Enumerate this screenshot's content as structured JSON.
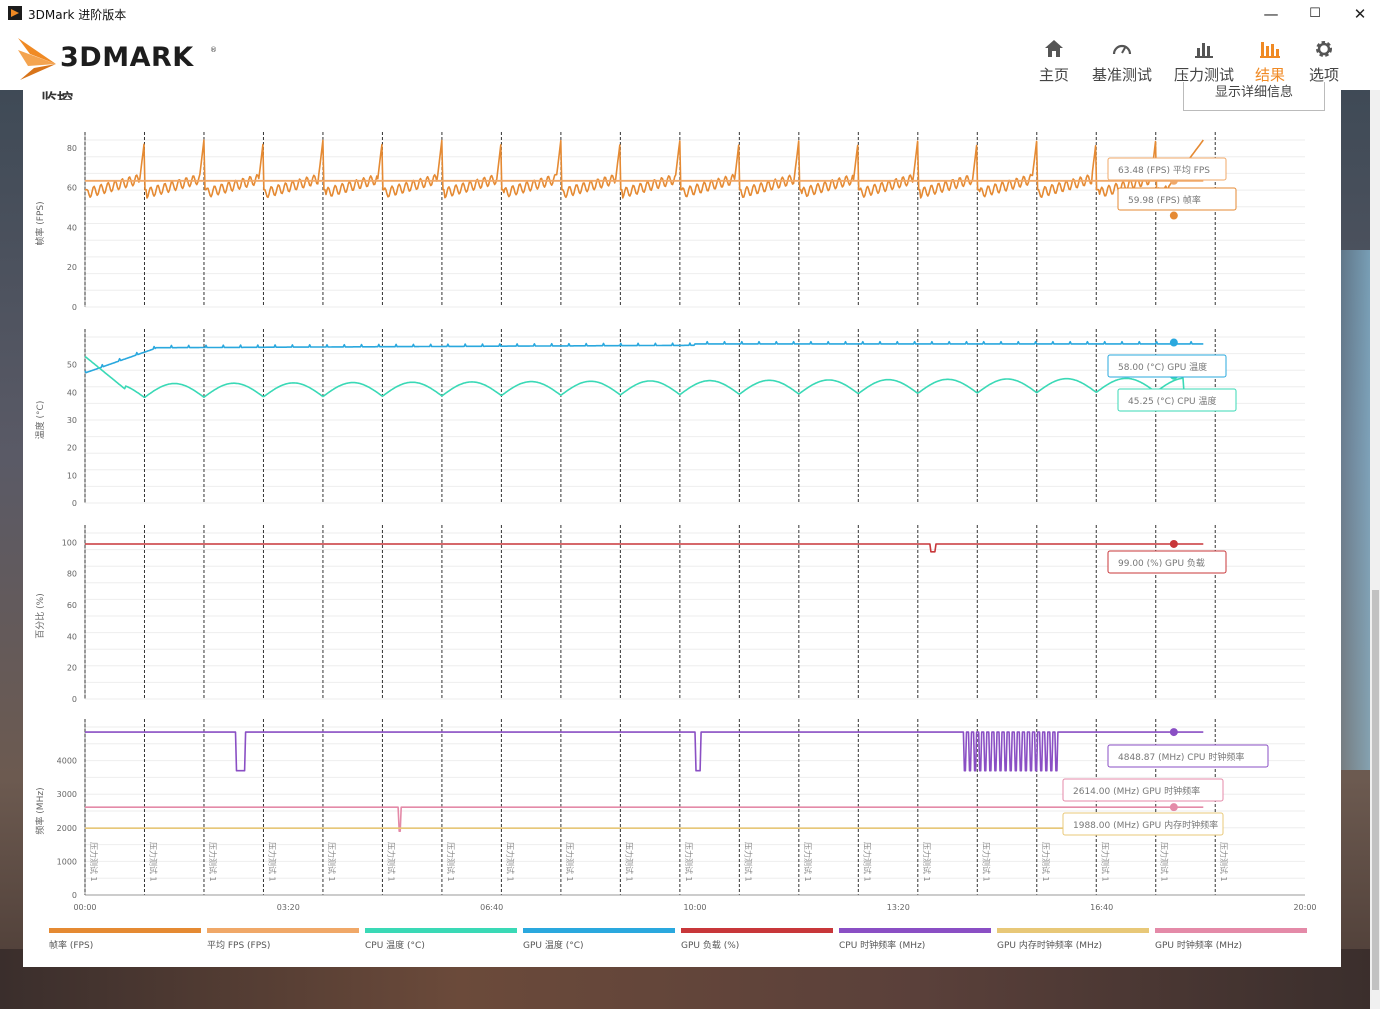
{
  "window": {
    "title": "3DMark 进阶版本",
    "minimize_glyph": "—",
    "maximize_glyph": "☐",
    "close_glyph": "✕"
  },
  "header": {
    "logo_text": "3DMARK",
    "logo_reg": "®",
    "nav": [
      {
        "label": "主页",
        "icon": "home-icon",
        "active": false
      },
      {
        "label": "基准测试",
        "icon": "gauge-icon",
        "active": false
      },
      {
        "label": "压力测试",
        "icon": "stress-bars-icon",
        "active": false
      },
      {
        "label": "结果",
        "icon": "results-bars-icon",
        "active": true
      },
      {
        "label": "选项",
        "icon": "gear-icon",
        "active": false
      }
    ],
    "accent_color": "#f08a24"
  },
  "monitor": {
    "title": "监控",
    "detail_button": "显示详细信息"
  },
  "legend": [
    {
      "label": "帧率 (FPS)",
      "color": "#e58a33"
    },
    {
      "label": "平均 FPS (FPS)",
      "color": "#f0a868"
    },
    {
      "label": "CPU 温度 (°C)",
      "color": "#3ad9b6"
    },
    {
      "label": "GPU 温度 (°C)",
      "color": "#2aa8de"
    },
    {
      "label": "GPU 负载 (%)",
      "color": "#c8373a"
    },
    {
      "label": "CPU 时钟频率 (MHz)",
      "color": "#8a4fc4"
    },
    {
      "label": "GPU 内存时钟频率 (MHz)",
      "color": "#e8c878"
    },
    {
      "label": "GPU 时钟频率 (MHz)",
      "color": "#e48aa8"
    }
  ],
  "chart_data": {
    "type": "line",
    "x_ticks": [
      "00:00",
      "03:20",
      "06:40",
      "10:00",
      "13:20",
      "16:40",
      "20:00"
    ],
    "x_range_seconds": [
      0,
      1200
    ],
    "event_marker_label": "压力测试 1",
    "event_marker_count": 20,
    "panels": [
      {
        "ylabel": "帧率 (FPS)",
        "yticks": [
          0,
          20,
          40,
          60,
          80
        ],
        "ylim": [
          0,
          84
        ],
        "series": [
          {
            "name": "帧率 (FPS)",
            "color": "#e58a33",
            "pattern": "sawtooth",
            "min": 56,
            "max": 84,
            "end": 84
          },
          {
            "name": "平均 FPS (FPS)",
            "color": "#f0a868",
            "constant": 63.48
          }
        ],
        "callouts": [
          {
            "text": "63.48 (FPS) 平均 FPS",
            "color": "#f0a868"
          },
          {
            "text": "59.98 (FPS) 帧率",
            "color": "#e58a33"
          }
        ]
      },
      {
        "ylabel": "温度 (°C)",
        "yticks": [
          0,
          10,
          20,
          30,
          40,
          50
        ],
        "ylim": [
          0,
          60
        ],
        "series": [
          {
            "name": "GPU 温度 (°C)",
            "color": "#2aa8de",
            "start": 47,
            "plateau": 58
          },
          {
            "name": "CPU 温度 (°C)",
            "color": "#3ad9b6",
            "start": 53,
            "min": 37,
            "max": 47,
            "end": 40
          }
        ],
        "callouts": [
          {
            "text": "58.00 (°C) GPU 温度",
            "color": "#2aa8de"
          },
          {
            "text": "45.25 (°C) CPU 温度",
            "color": "#3ad9b6"
          }
        ]
      },
      {
        "ylabel": "百分比 (%)",
        "yticks": [
          0,
          20,
          40,
          60,
          80,
          100
        ],
        "ylim": [
          0,
          106
        ],
        "series": [
          {
            "name": "GPU 负载 (%)",
            "color": "#c8373a",
            "constant": 99,
            "dip_at": 13.9,
            "dip_to": 94
          }
        ],
        "callouts": [
          {
            "text": "99.00 (%) GPU 负载",
            "color": "#c8373a"
          }
        ]
      },
      {
        "ylabel": "频率 (MHz)",
        "yticks": [
          0,
          1000,
          2000,
          3000,
          4000
        ],
        "ylim": [
          0,
          5000
        ],
        "series": [
          {
            "name": "CPU 时钟频率 (MHz)",
            "color": "#8a4fc4",
            "constant": 4848.87,
            "dips_to": 3700
          },
          {
            "name": "GPU 时钟频率 (MHz)",
            "color": "#e48aa8",
            "constant": 2614,
            "dip_to": 1900
          },
          {
            "name": "GPU 内存时钟频率 (MHz)",
            "color": "#e8c878",
            "constant": 1988
          }
        ],
        "callouts": [
          {
            "text": "4848.87 (MHz) CPU 时钟频率",
            "color": "#8a4fc4"
          },
          {
            "text": "2614.00 (MHz) GPU 时钟频率",
            "color": "#e48aa8"
          },
          {
            "text": "1988.00 (MHz) GPU 内存时钟频率",
            "color": "#e8c878"
          }
        ]
      }
    ]
  }
}
